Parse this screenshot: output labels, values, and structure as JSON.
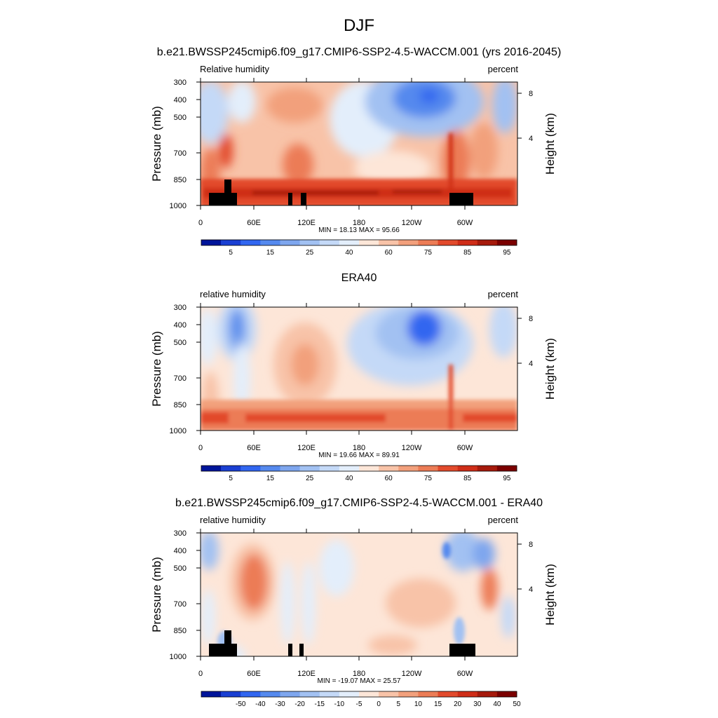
{
  "page": {
    "season": "DJF",
    "subtitle": "b.e21.BWSSP245cmip6.f09_g17.CMIP6-SSP2-4.5-WACCM.001 (yrs 2016-2045)"
  },
  "colors": {
    "positive_ramp": [
      "#fde6d8",
      "#f8c3a8",
      "#f2a07c",
      "#ec7c56",
      "#e24a2c",
      "#cf2d18",
      "#a61a0c",
      "#7b0000"
    ],
    "negative_ramp": [
      "#e3eefb",
      "#c4d9f7",
      "#a2c1f2",
      "#7ea6ee",
      "#5589ee",
      "#3166f0",
      "#1a3fd2",
      "#00159a"
    ],
    "topography": "#000000"
  },
  "chart_data": [
    {
      "type": "heatmap",
      "panel_title": "",
      "left_label": "Relative humidity",
      "right_label": "percent",
      "ylabel": "Pressure (mb)",
      "ylabel_right": "Height (km)",
      "x_ticks": [
        "0",
        "60E",
        "120E",
        "180",
        "120W",
        "60W"
      ],
      "y_ticks": [
        "300",
        "400",
        "500",
        "700",
        "850",
        "1000"
      ],
      "y_right_ticks": [
        "8",
        "4"
      ],
      "ylim": [
        1000,
        300
      ],
      "min_max_text": "MIN = 18.13  MAX = 95.66",
      "min": 18.13,
      "max": 95.66,
      "colorbar_labels": [
        "5",
        "15",
        "25",
        "40",
        "60",
        "75",
        "85",
        "95"
      ],
      "colorbar_colors": [
        "#00159a",
        "#1a3fd2",
        "#3166f0",
        "#5589ee",
        "#7ea6ee",
        "#a2c1f2",
        "#c4d9f7",
        "#e3eefb",
        "#fde6d8",
        "#f8c3a8",
        "#f2a07c",
        "#ec7c56",
        "#e24a2c",
        "#cf2d18",
        "#a61a0c",
        "#7b0000"
      ],
      "has_topography": true
    },
    {
      "type": "heatmap",
      "panel_title": "ERA40",
      "left_label": "relative humidity",
      "right_label": "percent",
      "ylabel": "Pressure (mb)",
      "ylabel_right": "Height (km)",
      "x_ticks": [
        "0",
        "60E",
        "120E",
        "180",
        "120W",
        "60W"
      ],
      "y_ticks": [
        "300",
        "400",
        "500",
        "700",
        "850",
        "1000"
      ],
      "y_right_ticks": [
        "8",
        "4"
      ],
      "ylim": [
        1000,
        300
      ],
      "min_max_text": "MIN = 19.66  MAX = 89.91",
      "min": 19.66,
      "max": 89.91,
      "colorbar_labels": [
        "5",
        "15",
        "25",
        "40",
        "60",
        "75",
        "85",
        "95"
      ],
      "colorbar_colors": [
        "#00159a",
        "#1a3fd2",
        "#3166f0",
        "#5589ee",
        "#7ea6ee",
        "#a2c1f2",
        "#c4d9f7",
        "#e3eefb",
        "#fde6d8",
        "#f8c3a8",
        "#f2a07c",
        "#ec7c56",
        "#e24a2c",
        "#cf2d18",
        "#a61a0c",
        "#7b0000"
      ],
      "has_topography": false
    },
    {
      "type": "heatmap",
      "panel_title": "b.e21.BWSSP245cmip6.f09_g17.CMIP6-SSP2-4.5-WACCM.001 - ERA40",
      "left_label": "relative humidity",
      "right_label": "percent",
      "ylabel": "Pressure (mb)",
      "ylabel_right": "Height (km)",
      "x_ticks": [
        "0",
        "60E",
        "120E",
        "180",
        "120W",
        "60W"
      ],
      "y_ticks": [
        "300",
        "400",
        "500",
        "700",
        "850",
        "1000"
      ],
      "y_right_ticks": [
        "8",
        "4"
      ],
      "ylim": [
        1000,
        300
      ],
      "min_max_text": "MIN = -19.07  MAX = 25.57",
      "min": -19.07,
      "max": 25.57,
      "colorbar_labels": [
        "-50",
        "-40",
        "-30",
        "-20",
        "-15",
        "-10",
        "-5",
        "0",
        "5",
        "10",
        "15",
        "20",
        "30",
        "40",
        "50"
      ],
      "colorbar_colors": [
        "#00159a",
        "#1a3fd2",
        "#3166f0",
        "#5589ee",
        "#7ea6ee",
        "#a2c1f2",
        "#c4d9f7",
        "#e3eefb",
        "#fde6d8",
        "#f8c3a8",
        "#f2a07c",
        "#ec7c56",
        "#e24a2c",
        "#cf2d18",
        "#a61a0c",
        "#7b0000"
      ],
      "has_topography": true
    }
  ]
}
